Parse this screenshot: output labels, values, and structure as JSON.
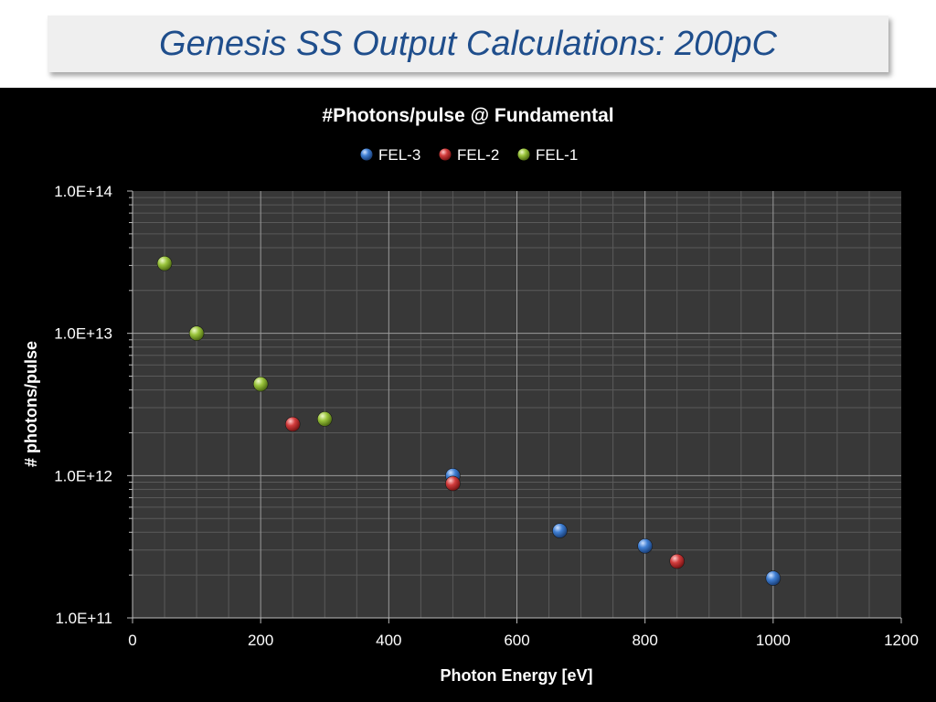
{
  "slide": {
    "title": "Genesis SS Output Calculations: 200pC"
  },
  "chart_data": {
    "type": "scatter",
    "title": "#Photons/pulse @ Fundamental",
    "xlabel": "Photon Energy [eV]",
    "ylabel": "# photons/pulse",
    "xlim": [
      0,
      1200
    ],
    "ylim": [
      100000000000.0,
      100000000000000.0
    ],
    "yscale": "log",
    "x_ticks": [
      "0",
      "200",
      "400",
      "600",
      "800",
      "1000",
      "1200"
    ],
    "y_ticks": [
      "1.0E+11",
      "1.0E+12",
      "1.0E+13",
      "1.0E+14"
    ],
    "legend_position": "top",
    "grid": true,
    "series": [
      {
        "name": "FEL-3",
        "color": "#3f7fd4",
        "points": [
          [
            500,
            1000000000000.0
          ],
          [
            667,
            410000000000.0
          ],
          [
            800,
            320000000000.0
          ],
          [
            1000,
            190000000000.0
          ]
        ]
      },
      {
        "name": "FEL-2",
        "color": "#d23c3c",
        "points": [
          [
            250,
            2300000000000.0
          ],
          [
            500,
            880000000000.0
          ],
          [
            850,
            250000000000.0
          ]
        ]
      },
      {
        "name": "FEL-1",
        "color": "#9ac43c",
        "points": [
          [
            50,
            31000000000000.0
          ],
          [
            100,
            10000000000000.0
          ],
          [
            200,
            4400000000000.0
          ],
          [
            300,
            2500000000000.0
          ]
        ]
      }
    ]
  }
}
